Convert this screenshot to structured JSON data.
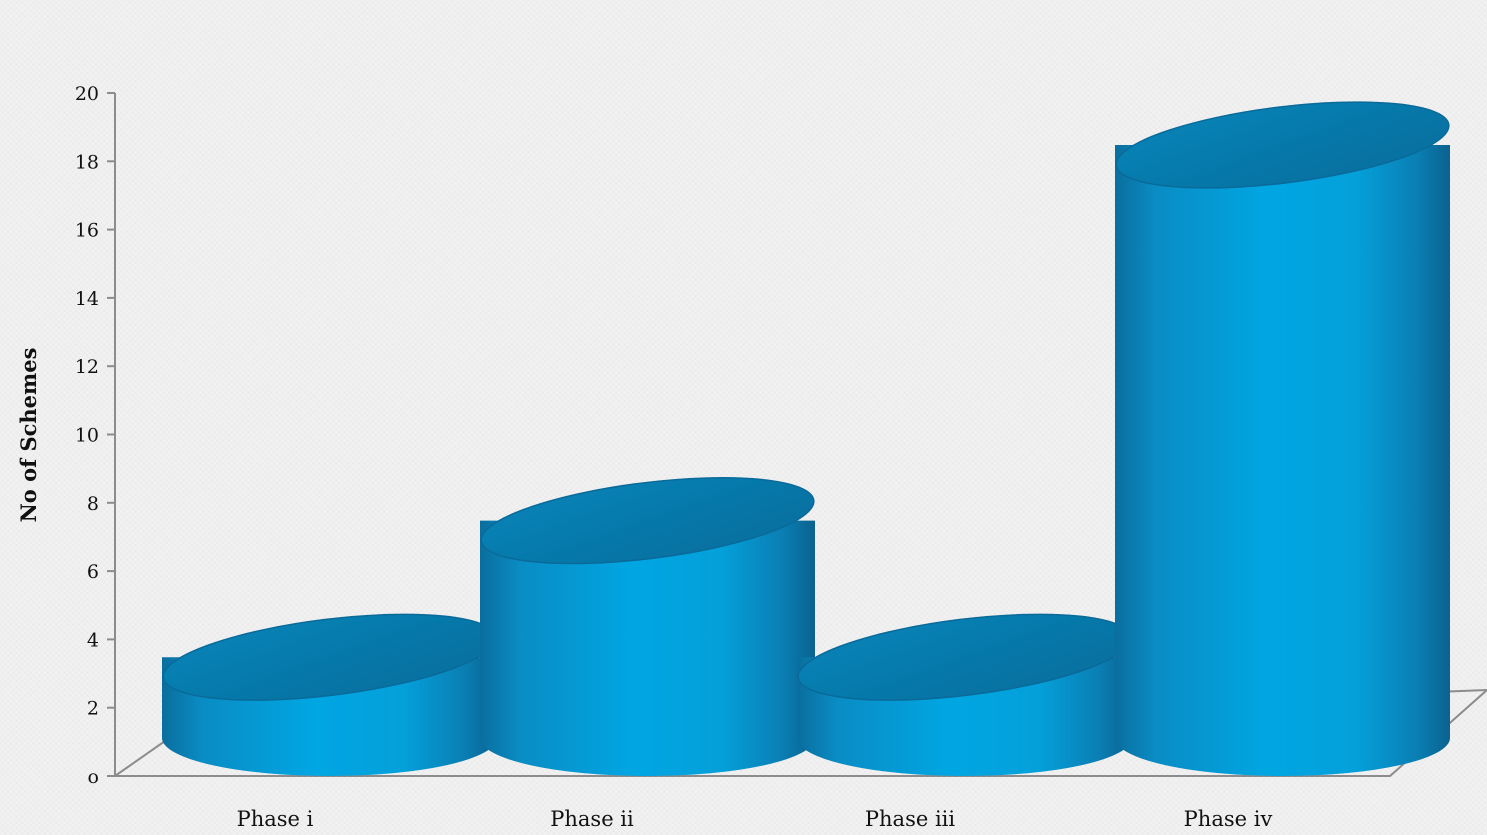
{
  "chart_data": {
    "type": "bar",
    "style": "3d-cylinder",
    "categories": [
      "Phase i",
      "Phase ii",
      "Phase iii",
      "Phase iv"
    ],
    "values": [
      5,
      9,
      5,
      20
    ],
    "title": "",
    "xlabel": "",
    "ylabel": "No of Schemes",
    "ylim": [
      0,
      20
    ],
    "yticks": [
      0,
      2,
      4,
      6,
      8,
      10,
      12,
      14,
      16,
      18,
      20
    ],
    "ytick_labels": [
      "o",
      "2",
      "4",
      "6",
      "8",
      "10",
      "12",
      "14",
      "16",
      "18",
      "20"
    ],
    "grid": false,
    "legend": "none",
    "colors": {
      "bar_body": "#00a0de",
      "bar_edge": "#0a6a9a",
      "bar_top": "#0076a8",
      "axis": "#8c8c8c",
      "background": "#f1f1f1"
    }
  }
}
